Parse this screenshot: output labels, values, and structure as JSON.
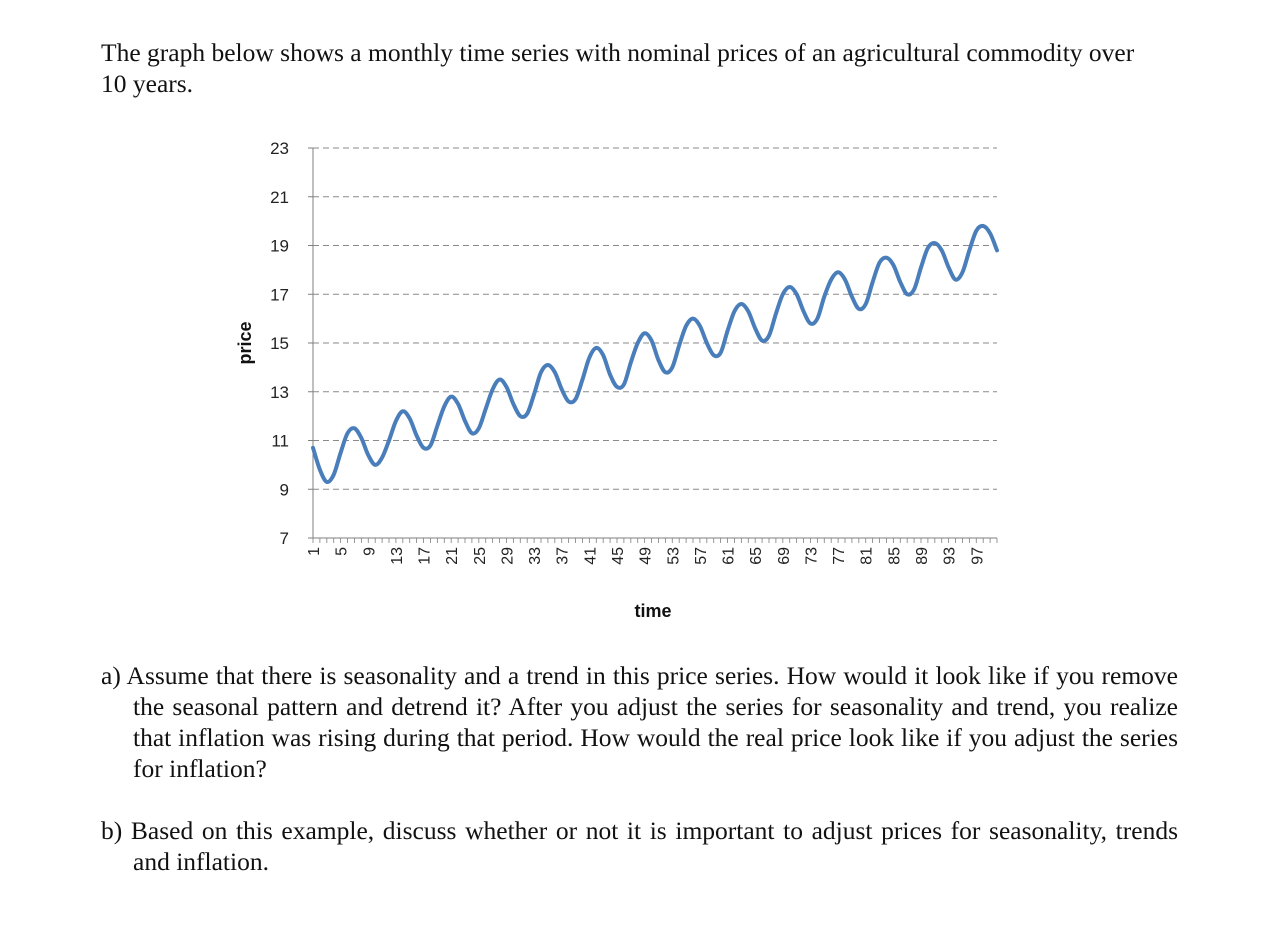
{
  "intro": "The graph below shows a monthly time series with nominal prices of an agricultural commodity over 10 years.",
  "questions": {
    "a": "a) Assume that there is seasonality and a trend in this price series. How would it look like if you remove the seasonal pattern and detrend it? After you adjust the series for seasonality and trend, you realize that inflation was rising during that period. How would the real price look like if you adjust the series for inflation?",
    "b": "b) Based on this example, discuss whether or not it is important to adjust prices for seasonality, trends and inflation."
  },
  "colors": {
    "line": "#4a7ebb",
    "grid": "#8a8a8a",
    "axis": "#7f7f7f"
  },
  "chart_data": {
    "type": "line",
    "title": "",
    "xlabel": "time",
    "ylabel": "price",
    "ylim": [
      7,
      23
    ],
    "yticks": [
      7,
      9,
      11,
      13,
      15,
      17,
      19,
      21,
      23
    ],
    "xlim": [
      1,
      100
    ],
    "xtick_labels": [
      "1",
      "5",
      "9",
      "13",
      "17",
      "21",
      "25",
      "29",
      "33",
      "37",
      "41",
      "45",
      "49",
      "53",
      "57",
      "61",
      "65",
      "69",
      "73",
      "77",
      "81",
      "85",
      "89",
      "93",
      "97"
    ],
    "grid": "horizontal dashed",
    "series": [
      {
        "x": [
          1,
          2,
          3,
          4,
          5,
          6,
          7,
          8,
          9,
          10,
          11,
          12,
          13,
          14,
          15,
          16,
          17,
          18,
          19,
          20,
          21,
          22,
          23,
          24,
          25,
          26,
          27,
          28,
          29,
          30,
          31,
          32,
          33,
          34,
          35,
          36,
          37,
          38,
          39,
          40,
          41,
          42,
          43,
          44,
          45,
          46,
          47,
          48,
          49,
          50,
          51,
          52,
          53,
          54,
          55,
          56,
          57,
          58,
          59,
          60,
          61,
          62,
          63,
          64,
          65,
          66,
          67,
          68,
          69,
          70,
          71,
          72,
          73,
          74,
          75,
          76,
          77,
          78,
          79,
          80,
          81,
          82,
          83,
          84,
          85,
          86,
          87,
          88,
          89,
          90,
          91,
          92,
          93,
          94,
          95,
          96,
          97,
          98,
          99,
          100
        ],
        "values": [
          10.7,
          9.8,
          9.3,
          9.6,
          10.5,
          11.3,
          11.5,
          11.1,
          10.4,
          10.0,
          10.3,
          11.0,
          11.8,
          12.2,
          11.9,
          11.2,
          10.7,
          10.8,
          11.6,
          12.4,
          12.8,
          12.5,
          11.8,
          11.3,
          11.5,
          12.3,
          13.1,
          13.5,
          13.2,
          12.5,
          12.0,
          12.1,
          12.9,
          13.8,
          14.1,
          13.8,
          13.1,
          12.6,
          12.7,
          13.5,
          14.4,
          14.8,
          14.5,
          13.7,
          13.2,
          13.3,
          14.2,
          15.0,
          15.4,
          15.1,
          14.3,
          13.8,
          14.0,
          14.9,
          15.7,
          16.0,
          15.7,
          15.0,
          14.5,
          14.6,
          15.5,
          16.3,
          16.6,
          16.3,
          15.6,
          15.1,
          15.3,
          16.2,
          17.0,
          17.3,
          17.0,
          16.3,
          15.8,
          16.0,
          16.9,
          17.6,
          17.9,
          17.6,
          16.9,
          16.4,
          16.6,
          17.5,
          18.3,
          18.5,
          18.2,
          17.5,
          17.0,
          17.2,
          18.1,
          18.9,
          19.1,
          18.8,
          18.1,
          17.6,
          17.9,
          18.8,
          19.6,
          19.8,
          19.5,
          18.8
        ]
      }
    ]
  }
}
